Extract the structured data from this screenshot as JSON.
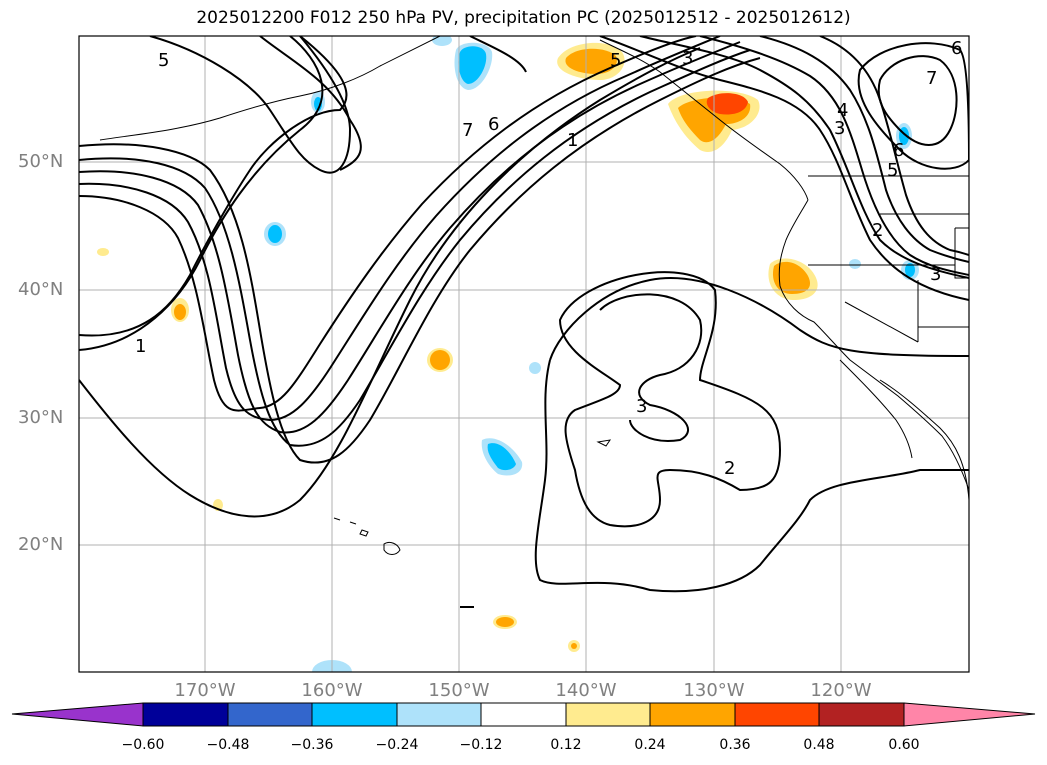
{
  "title": "2025012200 F012 250 hPa PV, precipitation PC (2025012512 - 2025012612)",
  "lat_labels": [
    "50°N",
    "40°N",
    "30°N",
    "20°N"
  ],
  "lon_labels": [
    "170°W",
    "160°W",
    "150°W",
    "140°W",
    "130°W",
    "120°W"
  ],
  "colorbar": {
    "ticks": [
      "−0.60",
      "−0.48",
      "−0.36",
      "−0.24",
      "−0.12",
      "0.12",
      "0.24",
      "0.36",
      "0.48",
      "0.60"
    ],
    "colors": {
      "under": "#9933cc",
      "bins": [
        "#000099",
        "#3366cc",
        "#00bfff",
        "#aee2fa",
        "#ffffff",
        "#ffeb8f",
        "#ffa500",
        "#ff4500",
        "#b22222"
      ],
      "over": "#ff85a8"
    }
  },
  "contour_labels": [
    "5",
    "1",
    "7",
    "6",
    "1",
    "3",
    "3",
    "5",
    "4",
    "3",
    "7",
    "6",
    "5",
    "2",
    "6",
    "3",
    "2"
  ],
  "colors": {
    "contour": "#000000",
    "grid": "#b0b0b0",
    "axis_label": "#808080"
  }
}
